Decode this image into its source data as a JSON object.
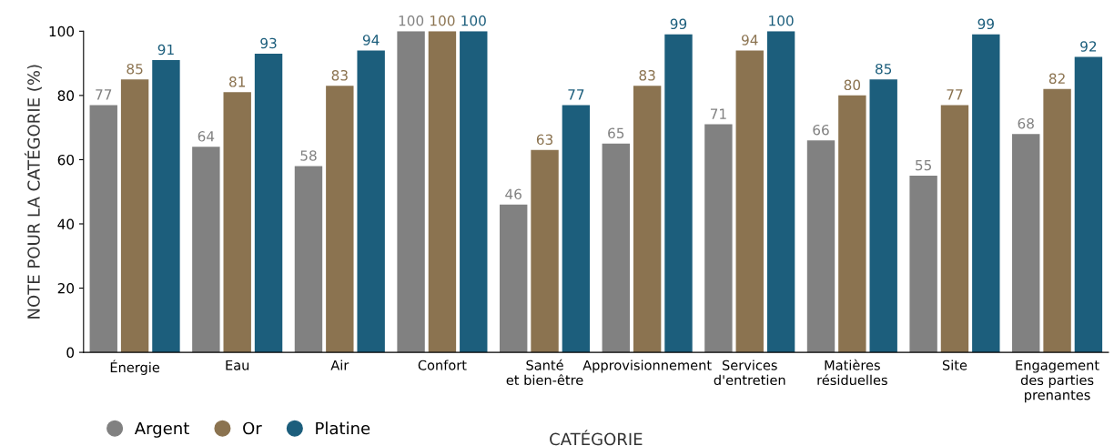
{
  "chart_data": {
    "type": "bar",
    "xlabel": "CATÉGORIE",
    "ylabel": "NOTE POUR LA CATÉGORIE (%)",
    "categories": [
      "Énergie",
      "Eau",
      "Air",
      "Confort",
      "Santé\net bien-être",
      "Approvisionnement",
      "Services\nd'entretien",
      "Matières\nrésiduelles",
      "Site",
      "Engagement\ndes parties\nprenantes"
    ],
    "series": [
      {
        "name": "Argent",
        "color": "#818181",
        "values": [
          77,
          64,
          58,
          100,
          46,
          65,
          71,
          66,
          55,
          68
        ]
      },
      {
        "name": "Or",
        "color": "#8b7350",
        "values": [
          85,
          81,
          83,
          100,
          63,
          83,
          94,
          80,
          77,
          82
        ]
      },
      {
        "name": "Platine",
        "color": "#1c5e7c",
        "values": [
          91,
          93,
          94,
          100,
          77,
          99,
          100,
          85,
          99,
          92
        ]
      }
    ],
    "ylim": [
      0,
      100
    ],
    "yticks": [
      0,
      20,
      40,
      60,
      80,
      100
    ],
    "grid": false,
    "data_labels": true,
    "legend": "bottom left"
  }
}
